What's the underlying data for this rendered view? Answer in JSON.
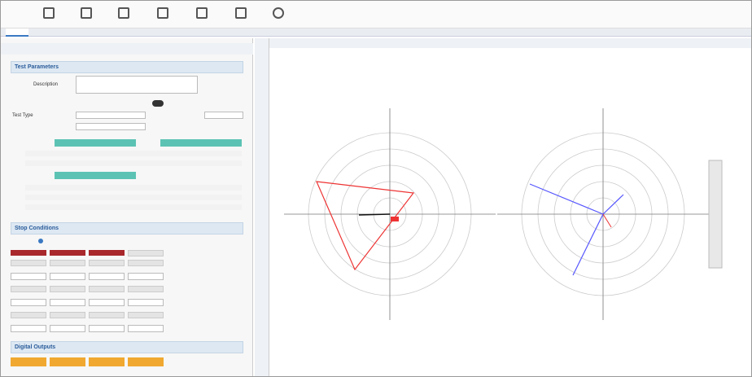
{
  "panel": {
    "sections": [
      "Test Parameters",
      "Stop Conditions",
      "Digital Outputs"
    ],
    "fields": [
      "Description",
      "Test Type"
    ]
  }
}
